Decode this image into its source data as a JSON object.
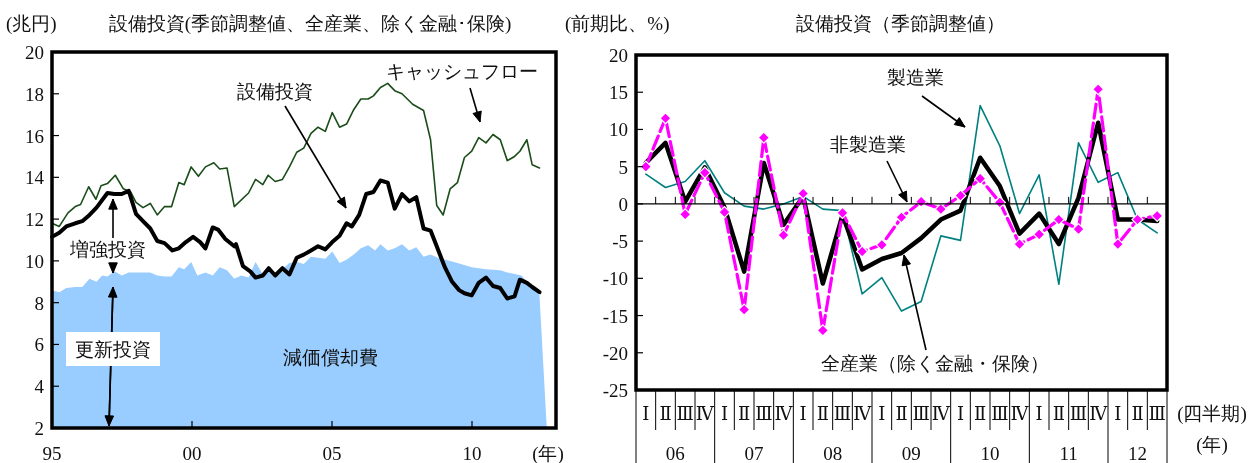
{
  "chart_data": [
    {
      "type": "line",
      "title": "設備投資(季節調整値、全産業、除く金融･保険)",
      "ylabel": "(兆円)",
      "xlabel": "(年)",
      "xlim": [
        1995,
        2013
      ],
      "xticks": [
        {
          "value": 1995,
          "label": "95"
        },
        {
          "value": 2000,
          "label": "00"
        },
        {
          "value": 2005,
          "label": "05"
        },
        {
          "value": 2010,
          "label": "10"
        }
      ],
      "ylim": [
        2,
        20
      ],
      "yticks": [
        2,
        4,
        6,
        8,
        10,
        12,
        14,
        16,
        18,
        20
      ],
      "grid": false,
      "annotations": [
        "増強投資",
        "更新投資"
      ],
      "series": [
        {
          "name": "減価償却費",
          "type": "area",
          "color": "#99ccff",
          "x": [
            1995.0,
            1995.26,
            1995.51,
            1995.83,
            1996.08,
            1996.34,
            1996.59,
            1996.79,
            1996.98,
            1997.23,
            1997.49,
            1997.74,
            1998.0,
            1998.51,
            1998.76,
            1999.02,
            1999.27,
            1999.53,
            1999.72,
            1999.97,
            2000.19,
            2000.48,
            2000.74,
            2000.99,
            2001.25,
            2001.51,
            2001.76,
            2002.02,
            2002.27,
            2002.53,
            2002.72,
            2002.97,
            2003.23,
            2003.48,
            2003.74,
            2003.99,
            2004.25,
            2004.5,
            2004.76,
            2005.01,
            2005.27,
            2005.52,
            2005.78,
            2006.03,
            2006.29,
            2006.54,
            2006.73,
            2006.99,
            2007.24,
            2007.5,
            2007.76,
            2008.01,
            2008.27,
            2008.52,
            2008.78,
            2009.22,
            2009.48,
            2009.99,
            2010.5,
            2011.01,
            2011.26,
            2011.77,
            2011.96,
            2012.41,
            2012.67
          ],
          "values": [
            8.6,
            8.5,
            8.7,
            8.75,
            8.75,
            9.15,
            9.0,
            9.3,
            9.25,
            9.5,
            9.3,
            9.45,
            9.45,
            9.45,
            9.3,
            9.25,
            9.25,
            9.7,
            9.6,
            9.95,
            9.3,
            9.45,
            9.3,
            9.7,
            9.55,
            9.15,
            9.3,
            9.2,
            9.95,
            9.35,
            9.5,
            9.45,
            9.6,
            9.9,
            9.95,
            9.85,
            10.2,
            10.15,
            10.1,
            10.45,
            9.9,
            10.05,
            10.3,
            10.6,
            10.75,
            10.5,
            10.8,
            10.5,
            10.6,
            10.8,
            10.5,
            10.65,
            10.2,
            10.3,
            10.15,
            10.0,
            9.9,
            9.7,
            9.6,
            9.55,
            9.45,
            9.3,
            9.0,
            8.35,
            2
          ]
        },
        {
          "name": "キャッシュフロー",
          "color": "#1a4d1a",
          "x": [
            1995.0,
            1995.26,
            1995.57,
            1995.83,
            1996.02,
            1996.31,
            1996.57,
            1996.75,
            1996.98,
            1997.26,
            1997.55,
            1997.81,
            1998.0,
            1998.25,
            1998.51,
            1998.76,
            1999.02,
            1999.27,
            1999.53,
            1999.72,
            1999.97,
            2000.23,
            2000.48,
            2000.78,
            2000.99,
            2001.25,
            2001.51,
            2002.02,
            2002.27,
            2002.53,
            2002.72,
            2002.97,
            2003.23,
            2003.48,
            2003.74,
            2003.99,
            2004.25,
            2004.5,
            2004.76,
            2005.01,
            2005.27,
            2005.52,
            2005.78,
            2006.03,
            2006.29,
            2006.48,
            2006.73,
            2006.99,
            2007.24,
            2007.5,
            2007.88,
            2008.27,
            2008.52,
            2008.74,
            2008.97,
            2009.22,
            2009.48,
            2009.73,
            2009.99,
            2010.24,
            2010.5,
            2010.75,
            2011.01,
            2011.26,
            2011.52,
            2011.71,
            2011.96,
            2012.15,
            2012.41
          ],
          "values": [
            11.8,
            11.65,
            12.3,
            12.6,
            12.7,
            13.55,
            12.95,
            13.6,
            13.7,
            14.1,
            13.45,
            13.3,
            12.8,
            12.55,
            12.75,
            12.2,
            12.6,
            12.6,
            13.75,
            13.65,
            14.5,
            14.05,
            14.5,
            14.7,
            14.4,
            14.45,
            12.6,
            13.25,
            13.9,
            13.65,
            14.1,
            13.8,
            13.9,
            14.5,
            15.2,
            15.4,
            16.1,
            16.4,
            16.2,
            17.1,
            16.4,
            16.55,
            17.25,
            17.75,
            17.75,
            17.9,
            18.3,
            18.5,
            18.15,
            18.0,
            17.5,
            17.2,
            15.8,
            12.65,
            12.2,
            13.45,
            13.75,
            14.95,
            15.25,
            15.9,
            15.65,
            16.05,
            15.8,
            14.8,
            15.0,
            15.25,
            15.8,
            14.6,
            14.45
          ]
        },
        {
          "name": "設備投資",
          "color": "#000000",
          "x": [
            1995.0,
            1995.26,
            1995.51,
            1995.83,
            1996.08,
            1996.34,
            1996.59,
            1996.98,
            1997.23,
            1997.49,
            1997.74,
            1998.0,
            1998.25,
            1998.51,
            1998.76,
            1999.02,
            1999.3,
            1999.53,
            1999.78,
            2000.04,
            2000.29,
            2000.48,
            2000.74,
            2000.93,
            2001.19,
            2001.51,
            2001.57,
            2001.82,
            2002.08,
            2002.27,
            2002.53,
            2002.74,
            2002.97,
            2003.23,
            2003.48,
            2003.74,
            2003.99,
            2004.25,
            2004.5,
            2004.76,
            2005.01,
            2005.27,
            2005.52,
            2005.71,
            2005.97,
            2006.22,
            2006.48,
            2006.73,
            2006.99,
            2007.24,
            2007.5,
            2007.76,
            2008.01,
            2008.27,
            2008.52,
            2008.74,
            2009.03,
            2009.29,
            2009.54,
            2009.73,
            2009.99,
            2010.24,
            2010.5,
            2010.75,
            2011.01,
            2011.26,
            2011.52,
            2011.71,
            2011.96,
            2012.15,
            2012.41
          ],
          "values": [
            11.15,
            11.35,
            11.65,
            11.8,
            11.9,
            12.2,
            12.55,
            13.25,
            13.2,
            13.2,
            13.35,
            12.25,
            11.9,
            11.55,
            10.95,
            10.85,
            10.5,
            10.6,
            10.9,
            11.15,
            10.9,
            10.6,
            11.6,
            11.5,
            11.05,
            10.7,
            10.8,
            9.75,
            9.5,
            9.2,
            9.3,
            9.65,
            9.3,
            9.65,
            9.35,
            10.15,
            10.3,
            10.5,
            10.7,
            10.55,
            10.9,
            11.2,
            11.8,
            11.65,
            12.2,
            13.2,
            13.3,
            13.85,
            13.75,
            12.5,
            13.2,
            12.85,
            13.05,
            11.55,
            11.45,
            10.7,
            9.7,
            9.0,
            8.6,
            8.45,
            8.35,
            8.95,
            9.2,
            8.8,
            8.7,
            8.2,
            8.3,
            9.1,
            8.95,
            8.75,
            8.5
          ]
        }
      ]
    },
    {
      "type": "line",
      "title": "設備投資（季節調整値）",
      "ylabel": "(前期比、%)",
      "xlabel": "(四半期)",
      "ylim": [
        -25,
        20
      ],
      "yticks": [
        -25,
        -20,
        -15,
        -10,
        -5,
        0,
        5,
        10,
        15,
        20
      ],
      "ref_lines": [
        {
          "axis": "y",
          "value": 0
        }
      ],
      "annotations": [
        "(年)",
        "06",
        "07",
        "08",
        "09",
        "10",
        "11",
        "12"
      ],
      "categories": [
        "Ⅰ",
        "Ⅱ",
        "Ⅲ",
        "Ⅳ",
        "Ⅰ",
        "Ⅱ",
        "Ⅲ",
        "Ⅳ",
        "Ⅰ",
        "Ⅱ",
        "Ⅲ",
        "Ⅳ",
        "Ⅰ",
        "Ⅱ",
        "Ⅲ",
        "Ⅳ",
        "Ⅰ",
        "Ⅱ",
        "Ⅲ",
        "Ⅳ",
        "Ⅰ",
        "Ⅱ",
        "Ⅲ",
        "Ⅳ",
        "Ⅰ",
        "Ⅱ",
        "Ⅲ"
      ],
      "series": [
        {
          "name": "製造業",
          "color": "#008080",
          "values": [
            4.0,
            2.2,
            3.0,
            5.8,
            1.5,
            -0.3,
            -0.7,
            0,
            1.0,
            -0.7,
            -0.9,
            -12.1,
            -9.9,
            -14.4,
            -13.1,
            -4.3,
            -4.9,
            13.2,
            7.8,
            -1.3,
            3.9,
            -10.8,
            8.2,
            2.9,
            4.2,
            -2.1,
            -3.9
          ]
        },
        {
          "name": "全産業（除く金融・保険）",
          "color": "#000000",
          "values": [
            5.5,
            8.2,
            0.3,
            4.9,
            -0.5,
            -9.1,
            5.5,
            -2.8,
            1.0,
            -10.7,
            -1.5,
            -8.8,
            -7.4,
            -6.6,
            -4.6,
            -2.1,
            -0.9,
            6.2,
            2.4,
            -4.0,
            -1.3,
            -5.4,
            0.8,
            10.9,
            -2.1,
            -2.1,
            -2.3
          ]
        },
        {
          "name": "非製造業",
          "color": "#ff00ff",
          "marker": "diamond",
          "line_style": "dashed",
          "values": [
            5.0,
            11.5,
            -1.4,
            4.2,
            -1.1,
            -14.2,
            8.9,
            -4.2,
            1.4,
            -17.0,
            -1.2,
            -6.4,
            -5.5,
            -1.8,
            0.3,
            -0.7,
            1.1,
            3.4,
            0.2,
            -5.4,
            -4.1,
            -2.1,
            -3.4,
            15.4,
            -5.4,
            -2.1,
            -1.6
          ]
        }
      ]
    }
  ]
}
